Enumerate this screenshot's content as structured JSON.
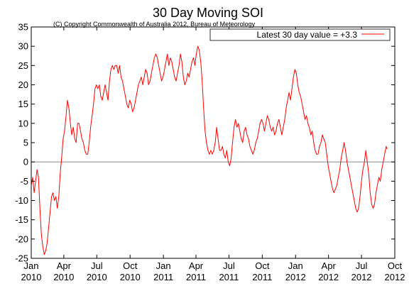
{
  "chart_data": {
    "type": "line",
    "title": "30 Day Moving SOI",
    "subtitle": "(C) Copyright Commonwealth of Australia 2012, Bureau of Meteorology",
    "xlabel": "",
    "ylabel": "",
    "xlim": [
      "2010-01-01",
      "2012-10-01"
    ],
    "ylim": [
      -25,
      35
    ],
    "y_ticks": [
      "-25",
      "-20",
      "-15",
      "-10",
      "-5",
      "0",
      "5",
      "10",
      "15",
      "20",
      "25",
      "30",
      "35"
    ],
    "x_ticks": [
      {
        "date": "2010-01-01",
        "month": "Jan",
        "year": "2010"
      },
      {
        "date": "2010-04-01",
        "month": "Apr",
        "year": "2010"
      },
      {
        "date": "2010-07-01",
        "month": "Jul",
        "year": "2010"
      },
      {
        "date": "2010-10-01",
        "month": "Oct",
        "year": "2010"
      },
      {
        "date": "2011-01-01",
        "month": "Jan",
        "year": "2011"
      },
      {
        "date": "2011-04-01",
        "month": "Apr",
        "year": "2011"
      },
      {
        "date": "2011-07-01",
        "month": "Jul",
        "year": "2011"
      },
      {
        "date": "2011-10-01",
        "month": "Oct",
        "year": "2011"
      },
      {
        "date": "2012-01-01",
        "month": "Jan",
        "year": "2012"
      },
      {
        "date": "2012-04-01",
        "month": "Apr",
        "year": "2012"
      },
      {
        "date": "2012-07-01",
        "month": "Jul",
        "year": "2012"
      },
      {
        "date": "2012-10-01",
        "month": "Oct",
        "year": "2012"
      }
    ],
    "grid": false,
    "zero_line": true,
    "legend": {
      "position": "top-right",
      "label": "Latest 30 day value = +3.3"
    },
    "series": [
      {
        "name": "Latest 30 day value = +3.3",
        "color": "#ff0000",
        "points": [
          [
            "2010-01-01",
            -6
          ],
          [
            "2010-01-05",
            -4
          ],
          [
            "2010-01-09",
            -8
          ],
          [
            "2010-01-13",
            -5
          ],
          [
            "2010-01-17",
            -2
          ],
          [
            "2010-01-21",
            -4
          ],
          [
            "2010-01-25",
            -12
          ],
          [
            "2010-01-29",
            -19
          ],
          [
            "2010-02-02",
            -22
          ],
          [
            "2010-02-06",
            -24
          ],
          [
            "2010-02-10",
            -23
          ],
          [
            "2010-02-14",
            -21
          ],
          [
            "2010-02-18",
            -17
          ],
          [
            "2010-02-22",
            -13
          ],
          [
            "2010-02-26",
            -9
          ],
          [
            "2010-03-02",
            -8
          ],
          [
            "2010-03-06",
            -10
          ],
          [
            "2010-03-10",
            -9
          ],
          [
            "2010-03-14",
            -12
          ],
          [
            "2010-03-18",
            -9
          ],
          [
            "2010-03-22",
            -3
          ],
          [
            "2010-03-26",
            1
          ],
          [
            "2010-03-30",
            6
          ],
          [
            "2010-04-03",
            8
          ],
          [
            "2010-04-07",
            12
          ],
          [
            "2010-04-11",
            16
          ],
          [
            "2010-04-15",
            14
          ],
          [
            "2010-04-19",
            10
          ],
          [
            "2010-04-23",
            7
          ],
          [
            "2010-04-27",
            9
          ],
          [
            "2010-05-01",
            6
          ],
          [
            "2010-05-05",
            5
          ],
          [
            "2010-05-09",
            10
          ],
          [
            "2010-05-13",
            10
          ],
          [
            "2010-05-17",
            8
          ],
          [
            "2010-05-21",
            6
          ],
          [
            "2010-05-25",
            5
          ],
          [
            "2010-05-29",
            3
          ],
          [
            "2010-06-02",
            2
          ],
          [
            "2010-06-06",
            2
          ],
          [
            "2010-06-10",
            5
          ],
          [
            "2010-06-14",
            9
          ],
          [
            "2010-06-18",
            12
          ],
          [
            "2010-06-22",
            15
          ],
          [
            "2010-06-26",
            19
          ],
          [
            "2010-06-30",
            20
          ],
          [
            "2010-07-04",
            19
          ],
          [
            "2010-07-08",
            20
          ],
          [
            "2010-07-12",
            17
          ],
          [
            "2010-07-16",
            16
          ],
          [
            "2010-07-20",
            18
          ],
          [
            "2010-07-24",
            20
          ],
          [
            "2010-07-28",
            18
          ],
          [
            "2010-08-01",
            16
          ],
          [
            "2010-08-05",
            21
          ],
          [
            "2010-08-09",
            24
          ],
          [
            "2010-08-13",
            25
          ],
          [
            "2010-08-17",
            24
          ],
          [
            "2010-08-21",
            25
          ],
          [
            "2010-08-25",
            25
          ],
          [
            "2010-08-29",
            23
          ],
          [
            "2010-09-02",
            25
          ],
          [
            "2010-09-06",
            22
          ],
          [
            "2010-09-10",
            21
          ],
          [
            "2010-09-14",
            19
          ],
          [
            "2010-09-18",
            17
          ],
          [
            "2010-09-22",
            15
          ],
          [
            "2010-09-26",
            14
          ],
          [
            "2010-09-30",
            16
          ],
          [
            "2010-10-04",
            15
          ],
          [
            "2010-10-08",
            13
          ],
          [
            "2010-10-12",
            14
          ],
          [
            "2010-10-16",
            16
          ],
          [
            "2010-10-20",
            18
          ],
          [
            "2010-10-24",
            20
          ],
          [
            "2010-10-28",
            21
          ],
          [
            "2010-11-01",
            22
          ],
          [
            "2010-11-05",
            20
          ],
          [
            "2010-11-09",
            22
          ],
          [
            "2010-11-13",
            24
          ],
          [
            "2010-11-17",
            23
          ],
          [
            "2010-11-21",
            20
          ],
          [
            "2010-11-25",
            21
          ],
          [
            "2010-11-29",
            23
          ],
          [
            "2010-12-03",
            25
          ],
          [
            "2010-12-07",
            27
          ],
          [
            "2010-12-11",
            28
          ],
          [
            "2010-12-15",
            27
          ],
          [
            "2010-12-19",
            25
          ],
          [
            "2010-12-23",
            23
          ],
          [
            "2010-12-27",
            21
          ],
          [
            "2010-12-31",
            22
          ],
          [
            "2011-01-04",
            24
          ],
          [
            "2011-01-08",
            26
          ],
          [
            "2011-01-12",
            28
          ],
          [
            "2011-01-16",
            25
          ],
          [
            "2011-01-20",
            27
          ],
          [
            "2011-01-24",
            26
          ],
          [
            "2011-01-28",
            24
          ],
          [
            "2011-02-01",
            22
          ],
          [
            "2011-02-05",
            21
          ],
          [
            "2011-02-09",
            23
          ],
          [
            "2011-02-13",
            25
          ],
          [
            "2011-02-17",
            28
          ],
          [
            "2011-02-21",
            26
          ],
          [
            "2011-02-25",
            22
          ],
          [
            "2011-03-01",
            20
          ],
          [
            "2011-03-05",
            21
          ],
          [
            "2011-03-09",
            23
          ],
          [
            "2011-03-13",
            22
          ],
          [
            "2011-03-17",
            24
          ],
          [
            "2011-03-21",
            26
          ],
          [
            "2011-03-25",
            27
          ],
          [
            "2011-03-29",
            25
          ],
          [
            "2011-04-02",
            28
          ],
          [
            "2011-04-06",
            30
          ],
          [
            "2011-04-10",
            29
          ],
          [
            "2011-04-14",
            26
          ],
          [
            "2011-04-18",
            21
          ],
          [
            "2011-04-22",
            14
          ],
          [
            "2011-04-26",
            8
          ],
          [
            "2011-04-30",
            5
          ],
          [
            "2011-05-04",
            3
          ],
          [
            "2011-05-08",
            2
          ],
          [
            "2011-05-12",
            3
          ],
          [
            "2011-05-16",
            2
          ],
          [
            "2011-05-20",
            3
          ],
          [
            "2011-05-24",
            5
          ],
          [
            "2011-05-28",
            9
          ],
          [
            "2011-06-01",
            6
          ],
          [
            "2011-06-05",
            3
          ],
          [
            "2011-06-09",
            3
          ],
          [
            "2011-06-13",
            4
          ],
          [
            "2011-06-17",
            2
          ],
          [
            "2011-06-21",
            1
          ],
          [
            "2011-06-25",
            3
          ],
          [
            "2011-06-29",
            0
          ],
          [
            "2011-07-03",
            -1
          ],
          [
            "2011-07-07",
            1
          ],
          [
            "2011-07-11",
            5
          ],
          [
            "2011-07-15",
            9
          ],
          [
            "2011-07-19",
            11
          ],
          [
            "2011-07-23",
            9
          ],
          [
            "2011-07-27",
            10
          ],
          [
            "2011-07-31",
            8
          ],
          [
            "2011-08-04",
            6
          ],
          [
            "2011-08-08",
            5
          ],
          [
            "2011-08-12",
            8
          ],
          [
            "2011-08-16",
            9
          ],
          [
            "2011-08-20",
            7
          ],
          [
            "2011-08-24",
            6
          ],
          [
            "2011-08-28",
            4
          ],
          [
            "2011-09-01",
            3
          ],
          [
            "2011-09-05",
            2
          ],
          [
            "2011-09-09",
            3
          ],
          [
            "2011-09-13",
            5
          ],
          [
            "2011-09-17",
            6
          ],
          [
            "2011-09-21",
            8
          ],
          [
            "2011-09-25",
            10
          ],
          [
            "2011-09-29",
            11
          ],
          [
            "2011-10-03",
            10
          ],
          [
            "2011-10-07",
            8
          ],
          [
            "2011-10-11",
            10
          ],
          [
            "2011-10-15",
            12
          ],
          [
            "2011-10-19",
            11
          ],
          [
            "2011-10-23",
            9
          ],
          [
            "2011-10-27",
            8
          ],
          [
            "2011-10-31",
            9
          ],
          [
            "2011-11-04",
            7
          ],
          [
            "2011-11-08",
            8
          ],
          [
            "2011-11-12",
            10
          ],
          [
            "2011-11-16",
            11
          ],
          [
            "2011-11-20",
            9
          ],
          [
            "2011-11-24",
            7
          ],
          [
            "2011-11-28",
            9
          ],
          [
            "2011-12-02",
            11
          ],
          [
            "2011-12-06",
            14
          ],
          [
            "2011-12-10",
            16
          ],
          [
            "2011-12-14",
            18
          ],
          [
            "2011-12-18",
            16
          ],
          [
            "2011-12-22",
            19
          ],
          [
            "2011-12-26",
            22
          ],
          [
            "2011-12-30",
            24
          ],
          [
            "2012-01-03",
            23
          ],
          [
            "2012-01-07",
            20
          ],
          [
            "2012-01-11",
            18
          ],
          [
            "2012-01-15",
            17
          ],
          [
            "2012-01-19",
            15
          ],
          [
            "2012-01-23",
            13
          ],
          [
            "2012-01-27",
            11
          ],
          [
            "2012-01-31",
            12
          ],
          [
            "2012-02-04",
            10
          ],
          [
            "2012-02-08",
            9
          ],
          [
            "2012-02-12",
            7
          ],
          [
            "2012-02-16",
            8
          ],
          [
            "2012-02-20",
            5
          ],
          [
            "2012-02-24",
            3
          ],
          [
            "2012-02-28",
            2
          ],
          [
            "2012-03-03",
            2
          ],
          [
            "2012-03-07",
            4
          ],
          [
            "2012-03-11",
            5
          ],
          [
            "2012-03-15",
            7
          ],
          [
            "2012-03-19",
            6
          ],
          [
            "2012-03-23",
            5
          ],
          [
            "2012-03-27",
            2
          ],
          [
            "2012-03-31",
            -1
          ],
          [
            "2012-04-04",
            -3
          ],
          [
            "2012-04-08",
            -5
          ],
          [
            "2012-04-12",
            -7
          ],
          [
            "2012-04-16",
            -8
          ],
          [
            "2012-04-20",
            -7
          ],
          [
            "2012-04-24",
            -6
          ],
          [
            "2012-04-28",
            -4
          ],
          [
            "2012-05-02",
            -2
          ],
          [
            "2012-05-06",
            1
          ],
          [
            "2012-05-10",
            3
          ],
          [
            "2012-05-14",
            5
          ],
          [
            "2012-05-18",
            3
          ],
          [
            "2012-05-22",
            0
          ],
          [
            "2012-05-26",
            -2
          ],
          [
            "2012-05-30",
            -4
          ],
          [
            "2012-06-03",
            -6
          ],
          [
            "2012-06-07",
            -8
          ],
          [
            "2012-06-11",
            -10
          ],
          [
            "2012-06-15",
            -12
          ],
          [
            "2012-06-19",
            -13
          ],
          [
            "2012-06-23",
            -12
          ],
          [
            "2012-06-27",
            -9
          ],
          [
            "2012-07-01",
            -5
          ],
          [
            "2012-07-05",
            -2
          ],
          [
            "2012-07-09",
            0
          ],
          [
            "2012-07-13",
            3
          ],
          [
            "2012-07-17",
            0
          ],
          [
            "2012-07-21",
            -3
          ],
          [
            "2012-07-25",
            -8
          ],
          [
            "2012-07-29",
            -11
          ],
          [
            "2012-08-02",
            -12
          ],
          [
            "2012-08-06",
            -11
          ],
          [
            "2012-08-10",
            -8
          ],
          [
            "2012-08-14",
            -6
          ],
          [
            "2012-08-18",
            -4
          ],
          [
            "2012-08-22",
            -5
          ],
          [
            "2012-08-26",
            -2
          ],
          [
            "2012-08-30",
            0
          ],
          [
            "2012-09-03",
            2
          ],
          [
            "2012-09-07",
            4
          ],
          [
            "2012-09-10",
            3.3
          ]
        ]
      }
    ]
  }
}
